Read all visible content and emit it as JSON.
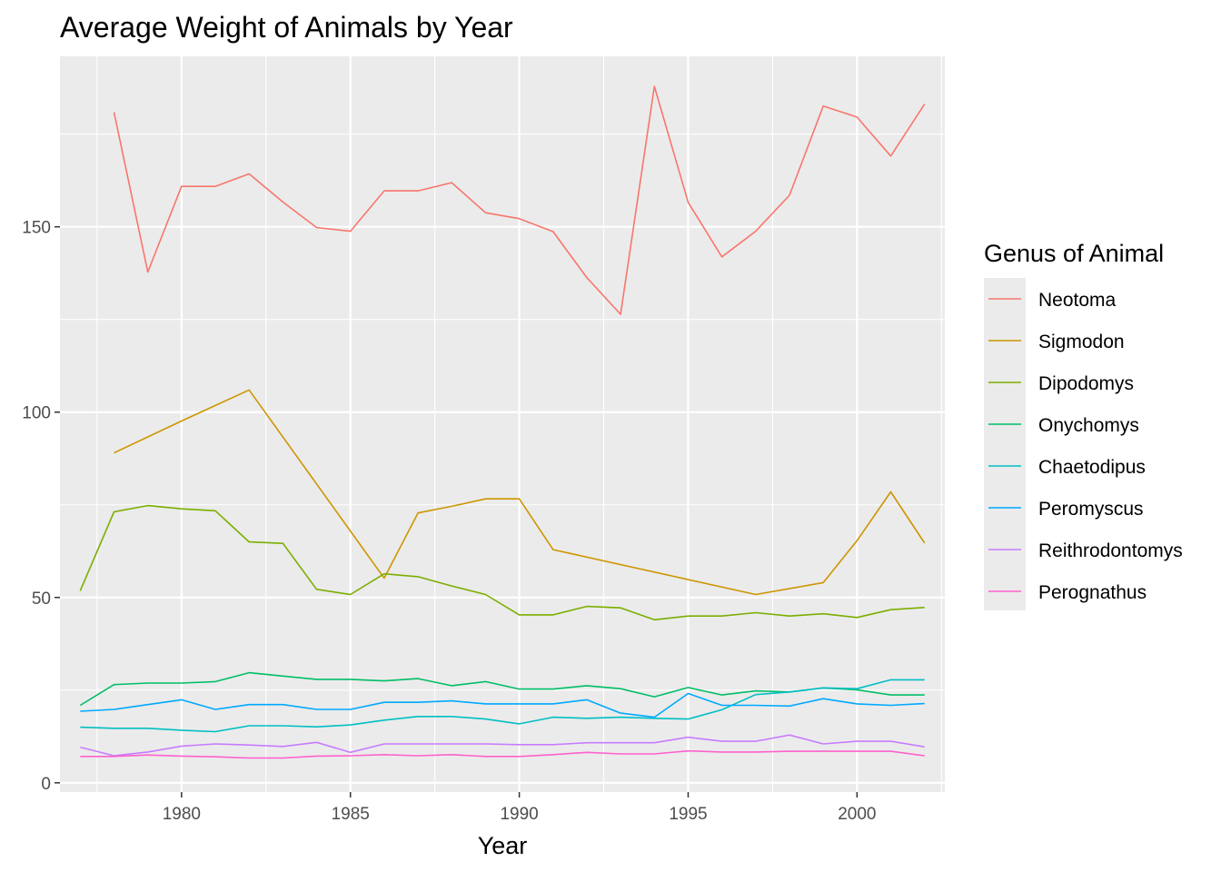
{
  "chart_data": {
    "type": "line",
    "title": "Average Weight of Animals by Year",
    "xlabel": "Year",
    "ylabel": "",
    "xlim": [
      1976.4,
      2002.6
    ],
    "ylim": [
      -2.5,
      196
    ],
    "x_ticks": [
      1980,
      1985,
      1990,
      1995,
      2000
    ],
    "y_ticks": [
      0,
      50,
      100,
      150
    ],
    "grid": true,
    "legend": {
      "title": "Genus of Animal",
      "position": "right"
    },
    "series": [
      {
        "name": "Neotoma",
        "color": "#F8766D",
        "points": [
          [
            1978,
            180.9
          ],
          [
            1979,
            137.8
          ],
          [
            1980,
            160.9
          ],
          [
            1981,
            160.9
          ],
          [
            1982,
            164.3
          ],
          [
            1983,
            156.7
          ],
          [
            1984,
            149.8
          ],
          [
            1985,
            148.8
          ],
          [
            1986,
            159.7
          ],
          [
            1987,
            159.7
          ],
          [
            1988,
            161.9
          ],
          [
            1989,
            153.8
          ],
          [
            1990,
            152.2
          ],
          [
            1991,
            148.7
          ],
          [
            1992,
            136.3
          ],
          [
            1993,
            126.4
          ],
          [
            1994,
            187.9
          ],
          [
            1995,
            156.6
          ],
          [
            1996,
            141.9
          ],
          [
            1997,
            148.8
          ],
          [
            1998,
            158.5
          ],
          [
            1999,
            182.6
          ],
          [
            2000,
            179.6
          ],
          [
            2001,
            169.1
          ],
          [
            2002,
            183.1
          ]
        ]
      },
      {
        "name": "Sigmodon",
        "color": "#CD9600",
        "points": [
          [
            1978,
            89.0
          ],
          [
            1980,
            97.6
          ],
          [
            1982,
            106.0
          ],
          [
            1986,
            55.2
          ],
          [
            1987,
            72.8
          ],
          [
            1988,
            74.6
          ],
          [
            1989,
            76.6
          ],
          [
            1990,
            76.6
          ],
          [
            1991,
            62.9
          ],
          [
            1997,
            50.8
          ],
          [
            1999,
            54.0
          ],
          [
            2000,
            65.3
          ],
          [
            2001,
            78.5
          ],
          [
            2002,
            64.7
          ]
        ]
      },
      {
        "name": "Dipodomys",
        "color": "#7CAE00",
        "points": [
          [
            1977,
            51.8
          ],
          [
            1978,
            73.1
          ],
          [
            1979,
            74.8
          ],
          [
            1980,
            73.9
          ],
          [
            1981,
            73.4
          ],
          [
            1982,
            65.0
          ],
          [
            1983,
            64.6
          ],
          [
            1984,
            52.2
          ],
          [
            1985,
            50.8
          ],
          [
            1986,
            56.4
          ],
          [
            1987,
            55.6
          ],
          [
            1988,
            53.1
          ],
          [
            1989,
            50.8
          ],
          [
            1990,
            45.3
          ],
          [
            1991,
            45.3
          ],
          [
            1992,
            47.6
          ],
          [
            1993,
            47.2
          ],
          [
            1994,
            44.0
          ],
          [
            1995,
            45.0
          ],
          [
            1996,
            45.0
          ],
          [
            1997,
            45.9
          ],
          [
            1998,
            45.0
          ],
          [
            1999,
            45.6
          ],
          [
            2000,
            44.6
          ],
          [
            2001,
            46.7
          ],
          [
            2002,
            47.3
          ]
        ]
      },
      {
        "name": "Onychomys",
        "color": "#00BE67",
        "points": [
          [
            1977,
            20.9
          ],
          [
            1978,
            26.5
          ],
          [
            1979,
            26.9
          ],
          [
            1980,
            26.9
          ],
          [
            1981,
            27.3
          ],
          [
            1982,
            29.7
          ],
          [
            1983,
            28.8
          ],
          [
            1984,
            27.9
          ],
          [
            1985,
            27.9
          ],
          [
            1986,
            27.5
          ],
          [
            1987,
            28.1
          ],
          [
            1988,
            26.2
          ],
          [
            1989,
            27.3
          ],
          [
            1990,
            25.3
          ],
          [
            1991,
            25.3
          ],
          [
            1992,
            26.2
          ],
          [
            1993,
            25.4
          ],
          [
            1994,
            23.2
          ],
          [
            1995,
            25.7
          ],
          [
            1996,
            23.7
          ],
          [
            1997,
            24.8
          ],
          [
            1998,
            24.5
          ],
          [
            1999,
            25.6
          ],
          [
            2000,
            25.1
          ],
          [
            2001,
            23.7
          ],
          [
            2002,
            23.7
          ]
        ]
      },
      {
        "name": "Chaetodipus",
        "color": "#00BFC4",
        "points": [
          [
            1977,
            15.0
          ],
          [
            1978,
            14.7
          ],
          [
            1979,
            14.7
          ],
          [
            1980,
            14.2
          ],
          [
            1981,
            13.8
          ],
          [
            1982,
            15.4
          ],
          [
            1983,
            15.4
          ],
          [
            1984,
            15.1
          ],
          [
            1985,
            15.6
          ],
          [
            1986,
            16.9
          ],
          [
            1987,
            17.9
          ],
          [
            1988,
            17.9
          ],
          [
            1989,
            17.2
          ],
          [
            1990,
            15.9
          ],
          [
            1991,
            17.7
          ],
          [
            1992,
            17.4
          ],
          [
            1993,
            17.7
          ],
          [
            1994,
            17.4
          ],
          [
            1995,
            17.2
          ],
          [
            1996,
            19.7
          ],
          [
            1997,
            23.8
          ],
          [
            1998,
            24.5
          ],
          [
            1999,
            25.6
          ],
          [
            2000,
            25.4
          ],
          [
            2001,
            27.8
          ],
          [
            2002,
            27.8
          ]
        ]
      },
      {
        "name": "Peromyscus",
        "color": "#00A9FF",
        "points": [
          [
            1977,
            19.3
          ],
          [
            1978,
            19.8
          ],
          [
            1979,
            21.1
          ],
          [
            1980,
            22.4
          ],
          [
            1981,
            19.8
          ],
          [
            1982,
            21.1
          ],
          [
            1983,
            21.1
          ],
          [
            1984,
            19.8
          ],
          [
            1985,
            19.8
          ],
          [
            1986,
            21.7
          ],
          [
            1987,
            21.7
          ],
          [
            1988,
            22.1
          ],
          [
            1989,
            21.3
          ],
          [
            1990,
            21.3
          ],
          [
            1991,
            21.3
          ],
          [
            1992,
            22.4
          ],
          [
            1993,
            18.8
          ],
          [
            1994,
            17.7
          ],
          [
            1995,
            24.1
          ],
          [
            1996,
            20.9
          ],
          [
            1997,
            20.9
          ],
          [
            1998,
            20.7
          ],
          [
            1999,
            22.7
          ],
          [
            2000,
            21.3
          ],
          [
            2001,
            20.9
          ],
          [
            2002,
            21.4
          ]
        ]
      },
      {
        "name": "Reithrodontomys",
        "color": "#C77CFF",
        "points": [
          [
            1977,
            9.6
          ],
          [
            1978,
            7.3
          ],
          [
            1979,
            8.3
          ],
          [
            1980,
            9.9
          ],
          [
            1981,
            10.5
          ],
          [
            1982,
            10.2
          ],
          [
            1983,
            9.8
          ],
          [
            1984,
            10.9
          ],
          [
            1985,
            8.2
          ],
          [
            1986,
            10.5
          ],
          [
            1987,
            10.5
          ],
          [
            1988,
            10.5
          ],
          [
            1989,
            10.5
          ],
          [
            1990,
            10.3
          ],
          [
            1991,
            10.3
          ],
          [
            1992,
            10.8
          ],
          [
            1993,
            10.8
          ],
          [
            1994,
            10.8
          ],
          [
            1995,
            12.3
          ],
          [
            1996,
            11.2
          ],
          [
            1997,
            11.2
          ],
          [
            1998,
            12.9
          ],
          [
            1999,
            10.5
          ],
          [
            2000,
            11.2
          ],
          [
            2001,
            11.2
          ],
          [
            2002,
            9.7
          ]
        ]
      },
      {
        "name": "Perognathus",
        "color": "#FF61CC",
        "points": [
          [
            1977,
            7.1
          ],
          [
            1978,
            7.1
          ],
          [
            1979,
            7.5
          ],
          [
            1980,
            7.2
          ],
          [
            1981,
            7.0
          ],
          [
            1982,
            6.7
          ],
          [
            1983,
            6.7
          ],
          [
            1984,
            7.2
          ],
          [
            1985,
            7.3
          ],
          [
            1986,
            7.6
          ],
          [
            1987,
            7.3
          ],
          [
            1988,
            7.6
          ],
          [
            1989,
            7.1
          ],
          [
            1990,
            7.1
          ],
          [
            1991,
            7.6
          ],
          [
            1992,
            8.2
          ],
          [
            1993,
            7.8
          ],
          [
            1994,
            7.8
          ],
          [
            1995,
            8.6
          ],
          [
            1996,
            8.3
          ],
          [
            1997,
            8.3
          ],
          [
            1998,
            8.5
          ],
          [
            1999,
            8.5
          ],
          [
            2000,
            8.5
          ],
          [
            2001,
            8.5
          ],
          [
            2002,
            7.3
          ]
        ]
      }
    ]
  }
}
